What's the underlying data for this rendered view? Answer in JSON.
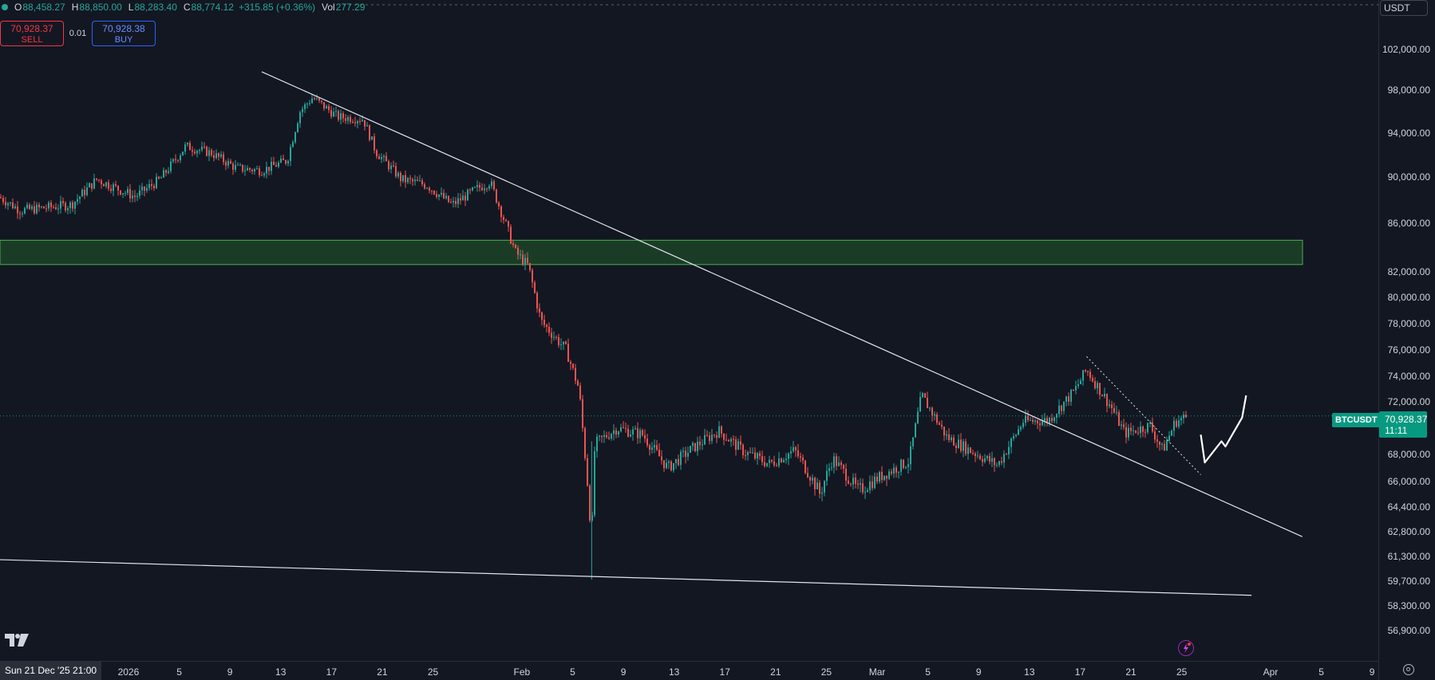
{
  "legend": {
    "o_label": "O",
    "o_value": "88,458.27",
    "h_label": "H",
    "h_value": "88,850.00",
    "l_label": "L",
    "l_value": "88,283.40",
    "c_label": "C",
    "c_value": "88,774.12",
    "change": "+315.85 (+0.36%)",
    "vol_label": "Vol",
    "vol_value": "277.29"
  },
  "trade": {
    "sell_price": "70,928.37",
    "sell_label": "SELL",
    "spread": "0.01",
    "buy_price": "70,928.38",
    "buy_label": "BUY"
  },
  "currency": "USDT",
  "symbol_tag": "BTCUSDT",
  "last_price": {
    "price": "70,928.37",
    "countdown": "11:11"
  },
  "price_scale": {
    "ticks": [
      {
        "value": 102000,
        "label": "102,000.00"
      },
      {
        "value": 98000,
        "label": "98,000.00"
      },
      {
        "value": 94000,
        "label": "94,000.00"
      },
      {
        "value": 90000,
        "label": "90,000.00"
      },
      {
        "value": 86000,
        "label": "86,000.00"
      },
      {
        "value": 82000,
        "label": "82,000.00"
      },
      {
        "value": 80000,
        "label": "80,000.00"
      },
      {
        "value": 78000,
        "label": "78,000.00"
      },
      {
        "value": 76000,
        "label": "76,000.00"
      },
      {
        "value": 74000,
        "label": "74,000.00"
      },
      {
        "value": 72000,
        "label": "72,000.00"
      },
      {
        "value": 68000,
        "label": "68,000.00"
      },
      {
        "value": 66000,
        "label": "66,000.00"
      },
      {
        "value": 64400,
        "label": "64,400.00"
      },
      {
        "value": 62800,
        "label": "62,800.00"
      },
      {
        "value": 61300,
        "label": "61,300.00"
      },
      {
        "value": 59700,
        "label": "59,700.00"
      },
      {
        "value": 58300,
        "label": "58,300.00"
      },
      {
        "value": 56900,
        "label": "56,900.00"
      }
    ]
  },
  "time_axis": {
    "cursor_label": "Sun 21 Dec '25   21:00",
    "labels": [
      "2026",
      "5",
      "9",
      "13",
      "17",
      "21",
      "25",
      "Feb",
      "5",
      "9",
      "13",
      "17",
      "21",
      "25",
      "Mar",
      "5",
      "9",
      "13",
      "17",
      "21",
      "25",
      "Apr",
      "5",
      "9"
    ]
  },
  "colors": {
    "background": "#131722",
    "up": "#26a69a",
    "down": "#ef5350",
    "zone": "#1e4a2a",
    "zone_border": "#4caf50",
    "trendline": "#e0e3eb"
  },
  "chart_data": {
    "type": "candlestick",
    "symbol": "BTCUSDT",
    "y_range": [
      56200,
      104000
    ],
    "support_zone": [
      82600,
      84600
    ],
    "series": [
      {
        "date": "2025-12-21",
        "price": 88500
      },
      {
        "date": "2025-12-23",
        "price": 87100
      },
      {
        "date": "2025-12-27",
        "price": 87600
      },
      {
        "date": "2025-12-29",
        "price": 89800
      },
      {
        "date": "2026-01-01",
        "price": 88300
      },
      {
        "date": "2026-01-03",
        "price": 89800
      },
      {
        "date": "2026-01-05",
        "price": 92800
      },
      {
        "date": "2026-01-07",
        "price": 92200
      },
      {
        "date": "2026-01-09",
        "price": 90800
      },
      {
        "date": "2026-01-11",
        "price": 90600
      },
      {
        "date": "2026-01-13",
        "price": 91500
      },
      {
        "date": "2026-01-14",
        "price": 96000
      },
      {
        "date": "2026-01-15",
        "price": 97300
      },
      {
        "date": "2026-01-17",
        "price": 95500
      },
      {
        "date": "2026-01-19",
        "price": 95300
      },
      {
        "date": "2026-01-20",
        "price": 92300
      },
      {
        "date": "2026-01-22",
        "price": 89800
      },
      {
        "date": "2026-01-24",
        "price": 89300
      },
      {
        "date": "2026-01-26",
        "price": 87600
      },
      {
        "date": "2026-01-28",
        "price": 89000
      },
      {
        "date": "2026-01-29",
        "price": 89600
      },
      {
        "date": "2026-01-31",
        "price": 83600
      },
      {
        "date": "2026-02-01",
        "price": 82500
      },
      {
        "date": "2026-02-02",
        "price": 78200
      },
      {
        "date": "2026-02-04",
        "price": 76000
      },
      {
        "date": "2026-02-05",
        "price": 73000
      },
      {
        "date": "2026-02-06",
        "price": 62400
      },
      {
        "date": "2026-02-06",
        "price": 68800
      },
      {
        "date": "2026-02-08",
        "price": 70000
      },
      {
        "date": "2026-02-10",
        "price": 69500
      },
      {
        "date": "2026-02-12",
        "price": 67000
      },
      {
        "date": "2026-02-14",
        "price": 68500
      },
      {
        "date": "2026-02-16",
        "price": 69800
      },
      {
        "date": "2026-02-18",
        "price": 68200
      },
      {
        "date": "2026-02-20",
        "price": 67300
      },
      {
        "date": "2026-02-22",
        "price": 68300
      },
      {
        "date": "2026-02-24",
        "price": 65200
      },
      {
        "date": "2026-02-25",
        "price": 67700
      },
      {
        "date": "2026-02-27",
        "price": 65400
      },
      {
        "date": "2026-03-01",
        "price": 66500
      },
      {
        "date": "2026-03-03",
        "price": 67500
      },
      {
        "date": "2026-03-04",
        "price": 72500
      },
      {
        "date": "2026-03-06",
        "price": 69300
      },
      {
        "date": "2026-03-08",
        "price": 68200
      },
      {
        "date": "2026-03-10",
        "price": 67200
      },
      {
        "date": "2026-03-12",
        "price": 70500
      },
      {
        "date": "2026-03-14",
        "price": 70600
      },
      {
        "date": "2026-03-16",
        "price": 72800
      },
      {
        "date": "2026-03-17",
        "price": 74500
      },
      {
        "date": "2026-03-19",
        "price": 71500
      },
      {
        "date": "2026-03-20",
        "price": 69600
      },
      {
        "date": "2026-03-22",
        "price": 70200
      },
      {
        "date": "2026-03-23",
        "price": 68300
      },
      {
        "date": "2026-03-24",
        "price": 70500
      },
      {
        "date": "2026-03-25",
        "price": 70900
      }
    ],
    "trendlines": [
      {
        "name": "upper-trendline",
        "from": {
          "date": "2026-01-11",
          "price": 99800
        },
        "to": {
          "date": "2026-04-03",
          "price": 62500
        }
      },
      {
        "name": "lower-trendline",
        "from": {
          "date": "2025-12-21",
          "price": 61100
        },
        "to": {
          "date": "2026-03-30",
          "price": 58900
        }
      },
      {
        "name": "short-trendline",
        "from": {
          "date": "2026-03-17",
          "price": 75500
        },
        "to": {
          "date": "2026-03-26",
          "price": 66500
        }
      }
    ],
    "projection": [
      {
        "date": "2026-03-26",
        "price": 69500
      },
      {
        "date": "2026-03-26",
        "price": 67400
      },
      {
        "date": "2026-03-27",
        "price": 69000
      },
      {
        "date": "2026-03-27",
        "price": 68600
      },
      {
        "date": "2026-03-28",
        "price": 70800
      },
      {
        "date": "2026-03-28",
        "price": 72500
      }
    ]
  }
}
